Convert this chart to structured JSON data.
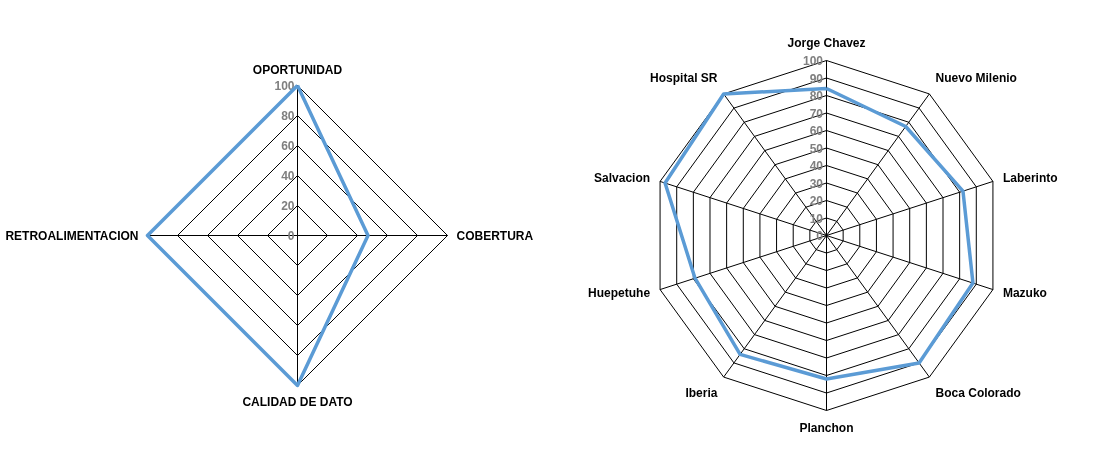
{
  "chart_data": [
    {
      "type": "radar",
      "categories": [
        "OPORTUNIDAD",
        "COBERTURA",
        "CALIDAD DE DATO",
        "RETROALIMENTACION"
      ],
      "series": [
        {
          "color": "#5b9bd5",
          "values": [
            100,
            47,
            100,
            100
          ]
        }
      ],
      "ylim": [
        0,
        100
      ],
      "yticks": [
        0,
        20,
        40,
        60,
        80,
        100
      ]
    },
    {
      "type": "radar",
      "categories": [
        "Jorge Chavez",
        "Nuevo Milenio",
        "Laberinto",
        "Mazuko",
        "Boca Colorado",
        "Planchon",
        "Iberia",
        "Huepetuhe",
        "Salvacion",
        "Hospital SR"
      ],
      "series": [
        {
          "color": "#5b9bd5",
          "values": [
            84,
            77,
            82,
            88,
            90,
            82,
            84,
            79,
            97,
            100
          ]
        }
      ],
      "ylim": [
        0,
        100
      ],
      "yticks": [
        0,
        10,
        20,
        30,
        40,
        50,
        60,
        70,
        80,
        90,
        100
      ]
    }
  ]
}
